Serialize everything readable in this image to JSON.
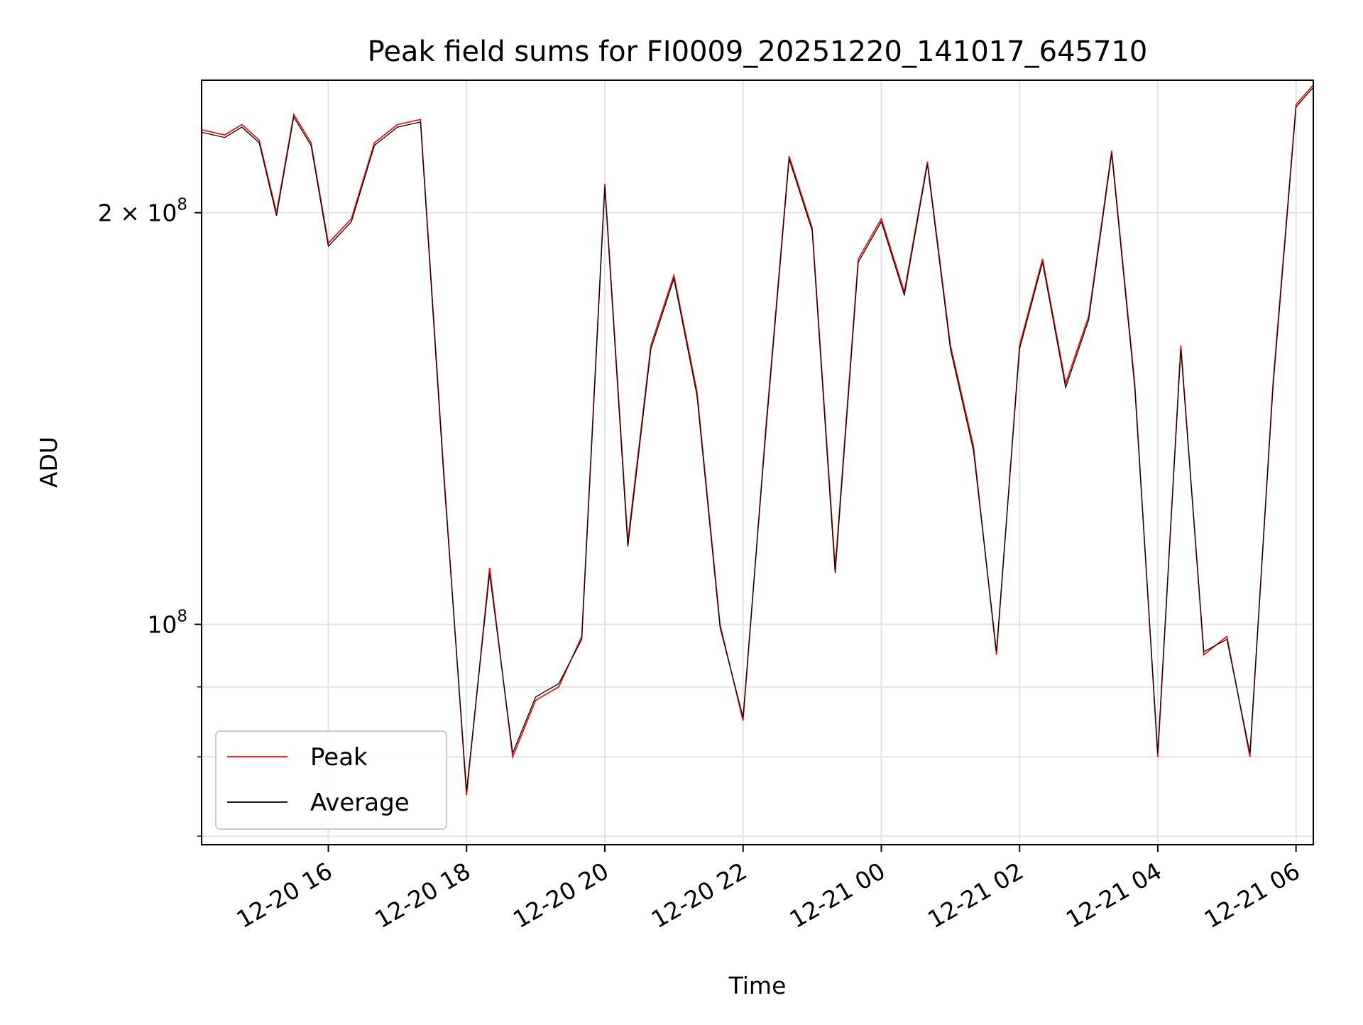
{
  "chart_data": {
    "type": "line",
    "title": "Peak field sums for FI0009_20251220_141017_645710",
    "xlabel": "Time",
    "ylabel": "ADU",
    "y_scale": "log",
    "grid": true,
    "legend_position": "lower-left",
    "xlim": [
      "2025-12-20 14:10",
      "2025-12-21 06:15"
    ],
    "ylim": [
      69000000,
      250000000
    ],
    "x_ticks": [
      {
        "value": "2025-12-20 16:00",
        "label": "12-20 16"
      },
      {
        "value": "2025-12-20 18:00",
        "label": "12-20 18"
      },
      {
        "value": "2025-12-20 20:00",
        "label": "12-20 20"
      },
      {
        "value": "2025-12-20 22:00",
        "label": "12-20 22"
      },
      {
        "value": "2025-12-21 00:00",
        "label": "12-21 00"
      },
      {
        "value": "2025-12-21 02:00",
        "label": "12-21 02"
      },
      {
        "value": "2025-12-21 04:00",
        "label": "12-21 04"
      },
      {
        "value": "2025-12-21 06:00",
        "label": "12-21 06"
      }
    ],
    "y_major_ticks": [
      {
        "value": 100000000,
        "base": "10",
        "exp": "8"
      },
      {
        "value": 200000000,
        "base": "2 × 10",
        "exp": "8"
      }
    ],
    "y_minor_ticks": [
      70000000,
      80000000,
      90000000,
      300000000
    ],
    "series_peak": {
      "name": "Peak",
      "color": "#ff0000",
      "x": [
        "2025-12-20 14:10",
        "2025-12-20 14:30",
        "2025-12-20 14:45",
        "2025-12-20 15:00",
        "2025-12-20 15:15",
        "2025-12-20 15:30",
        "2025-12-20 15:45",
        "2025-12-20 16:00",
        "2025-12-20 16:20",
        "2025-12-20 16:40",
        "2025-12-20 17:00",
        "2025-12-20 17:20",
        "2025-12-20 17:40",
        "2025-12-20 18:00",
        "2025-12-20 18:20",
        "2025-12-20 18:40",
        "2025-12-20 19:00",
        "2025-12-20 19:20",
        "2025-12-20 19:40",
        "2025-12-20 20:00",
        "2025-12-20 20:20",
        "2025-12-20 20:40",
        "2025-12-20 21:00",
        "2025-12-20 21:20",
        "2025-12-20 21:40",
        "2025-12-20 22:00",
        "2025-12-20 22:20",
        "2025-12-20 22:40",
        "2025-12-20 23:00",
        "2025-12-20 23:20",
        "2025-12-20 23:40",
        "2025-12-21 00:00",
        "2025-12-21 00:20",
        "2025-12-21 00:40",
        "2025-12-21 01:00",
        "2025-12-21 01:20",
        "2025-12-21 01:40",
        "2025-12-21 02:00",
        "2025-12-21 02:20",
        "2025-12-21 02:40",
        "2025-12-21 03:00",
        "2025-12-21 03:20",
        "2025-12-21 03:40",
        "2025-12-21 04:00",
        "2025-12-21 04:20",
        "2025-12-21 04:40",
        "2025-12-21 05:00",
        "2025-12-21 05:20",
        "2025-12-21 05:40",
        "2025-12-21 06:00",
        "2025-12-21 06:15"
      ],
      "y": [
        230000000,
        228000000,
        232000000,
        226000000,
        200000000,
        236000000,
        225000000,
        190000000,
        198000000,
        225000000,
        232000000,
        234000000,
        130000000,
        75000000,
        110000000,
        80000000,
        88000000,
        90000000,
        98000000,
        210000000,
        115000000,
        160000000,
        180000000,
        148000000,
        100000000,
        85000000,
        140000000,
        220000000,
        195000000,
        110000000,
        185000000,
        198000000,
        175000000,
        218000000,
        160000000,
        135000000,
        95000000,
        160000000,
        185000000,
        150000000,
        168000000,
        222000000,
        150000000,
        80000000,
        160000000,
        95000000,
        98000000,
        80000000,
        150000000,
        240000000,
        248000000
      ]
    },
    "series_average": {
      "name": "Average",
      "color": "#000000",
      "x": [
        "2025-12-20 14:10",
        "2025-12-20 14:30",
        "2025-12-20 14:45",
        "2025-12-20 15:00",
        "2025-12-20 15:15",
        "2025-12-20 15:30",
        "2025-12-20 15:45",
        "2025-12-20 16:00",
        "2025-12-20 16:20",
        "2025-12-20 16:40",
        "2025-12-20 17:00",
        "2025-12-20 17:20",
        "2025-12-20 17:40",
        "2025-12-20 18:00",
        "2025-12-20 18:20",
        "2025-12-20 18:40",
        "2025-12-20 19:00",
        "2025-12-20 19:20",
        "2025-12-20 19:40",
        "2025-12-20 20:00",
        "2025-12-20 20:20",
        "2025-12-20 20:40",
        "2025-12-20 21:00",
        "2025-12-20 21:20",
        "2025-12-20 21:40",
        "2025-12-20 22:00",
        "2025-12-20 22:20",
        "2025-12-20 22:40",
        "2025-12-20 23:00",
        "2025-12-20 23:20",
        "2025-12-20 23:40",
        "2025-12-21 00:00",
        "2025-12-21 00:20",
        "2025-12-21 00:40",
        "2025-12-21 01:00",
        "2025-12-21 01:20",
        "2025-12-21 01:40",
        "2025-12-21 02:00",
        "2025-12-21 02:20",
        "2025-12-21 02:40",
        "2025-12-21 03:00",
        "2025-12-21 03:20",
        "2025-12-21 03:40",
        "2025-12-21 04:00",
        "2025-12-21 04:20",
        "2025-12-21 04:40",
        "2025-12-21 05:00",
        "2025-12-21 05:20",
        "2025-12-21 05:40",
        "2025-12-21 06:00",
        "2025-12-21 06:15"
      ],
      "y": [
        229000000,
        227000000,
        231000000,
        225000000,
        199000000,
        235000000,
        224000000,
        189000000,
        197000000,
        224000000,
        231000000,
        233000000,
        129000000,
        75500000,
        109000000,
        80500000,
        88500000,
        90500000,
        97500000,
        209000000,
        114000000,
        159000000,
        179000000,
        147000000,
        99500000,
        85500000,
        139000000,
        219000000,
        194000000,
        109000000,
        184000000,
        197000000,
        174000000,
        217000000,
        159000000,
        134000000,
        95500000,
        159000000,
        184000000,
        149000000,
        167000000,
        221000000,
        149000000,
        80500000,
        159000000,
        95500000,
        97500000,
        80500000,
        149000000,
        239000000,
        247000000
      ]
    }
  }
}
